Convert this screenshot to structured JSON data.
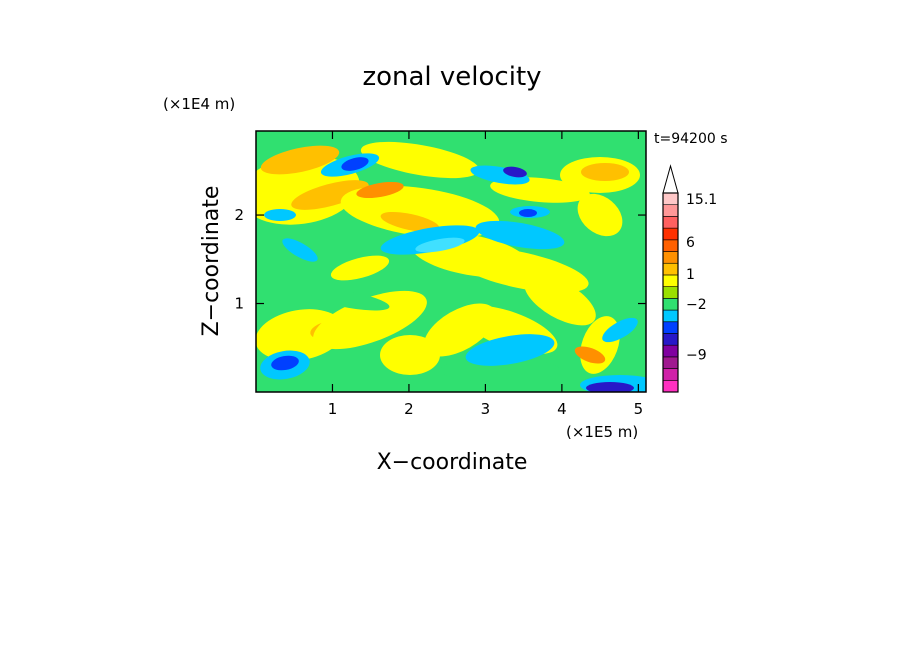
{
  "chart_data": {
    "type": "heatmap",
    "title": "zonal velocity",
    "xlabel": "X−coordinate",
    "ylabel": "Z−coordinate",
    "x_unit": "(×1E5 m)",
    "y_unit": "(×1E4 m)",
    "time_label": "t=94200 s",
    "xlim": [
      0,
      5.1
    ],
    "ylim": [
      0,
      2.95
    ],
    "x_ticks": [
      {
        "value": 1,
        "label": "1"
      },
      {
        "value": 2,
        "label": "2"
      },
      {
        "value": 3,
        "label": "3"
      },
      {
        "value": 4,
        "label": "4"
      },
      {
        "value": 5,
        "label": "5"
      }
    ],
    "y_ticks": [
      {
        "value": 1,
        "label": "1"
      },
      {
        "value": 2,
        "label": "2"
      }
    ],
    "colorbar": {
      "bands": [
        "#ff30c0",
        "#d020a8",
        "#a01890",
        "#8000a0",
        "#2818c8",
        "#0040ff",
        "#00c8ff",
        "#30e070",
        "#9ae000",
        "#ffff00",
        "#ffc000",
        "#ff9000",
        "#ff6000",
        "#ff3000",
        "#ff6060",
        "#ff9898",
        "#ffc8c8"
      ],
      "labels": [
        {
          "value": "15.1",
          "band": 16
        },
        {
          "value": "6",
          "band": 12.3
        },
        {
          "value": "1",
          "band": 9.6
        },
        {
          "value": "−2",
          "band": 7.0
        },
        {
          "value": "−9",
          "band": 2.7
        }
      ]
    },
    "dominant_fields": [
      {
        "x": 0.9,
        "z": 2.0,
        "level": "positive"
      },
      {
        "x": 2.3,
        "z": 1.9,
        "level": "positive"
      },
      {
        "x": 3.7,
        "z": 2.6,
        "level": "negative"
      },
      {
        "x": 0.35,
        "z": 0.35,
        "level": "negative"
      },
      {
        "x": 4.4,
        "z": 0.1,
        "level": "negative"
      }
    ]
  },
  "colors": {
    "green": "#30e070",
    "yellow": "#ffff00",
    "orange": "#ffc000",
    "cyan": "#00c8ff",
    "blue": "#0040ff",
    "navy": "#2818c8",
    "red_orange": "#ff9000"
  }
}
